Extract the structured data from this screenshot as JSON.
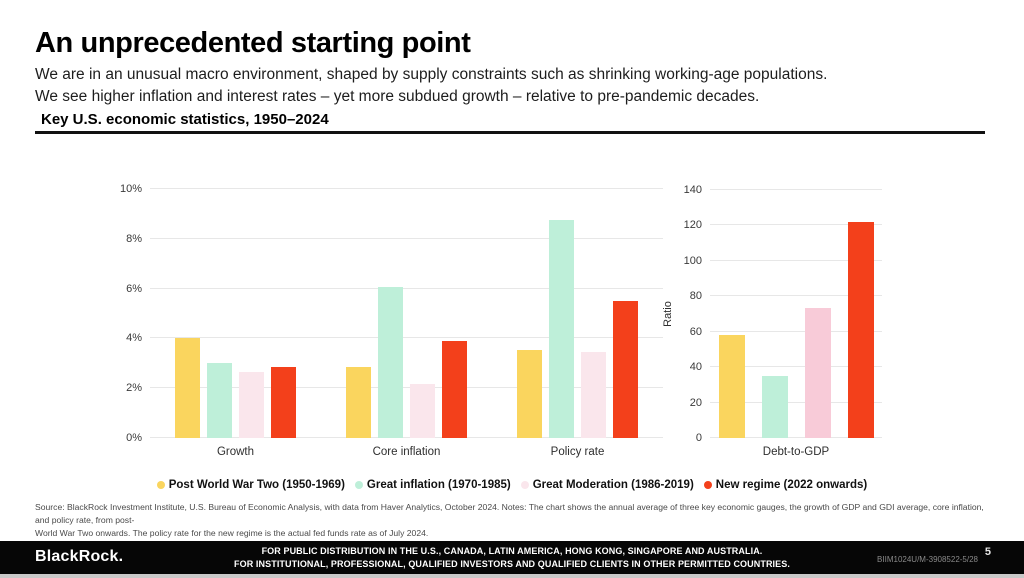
{
  "slide": {
    "title": "An unprecedented starting point",
    "subtitle_line1": "We are in an unusual macro environment, shaped by supply constraints such as shrinking working-age populations.",
    "subtitle_line2": "We see higher inflation and interest rates – yet more subdued growth – relative to pre-pandemic decades.",
    "chart_heading": "Key U.S. economic statistics, 1950–2024"
  },
  "colors": {
    "post_world_war_two": "#FAD55E",
    "great_inflation": "#BEEFD9",
    "great_moderation_light": "#FAE6EC",
    "great_moderation_pink": "#F8CBD8",
    "new_regime": "#F3401B",
    "gridline": "#e7e7e7",
    "footer_background": "#060606"
  },
  "legend": [
    {
      "label": "Post World War Two (1950-1969)",
      "color": "#FAD55E"
    },
    {
      "label": "Great inflation (1970-1985)",
      "color": "#BEEFD9"
    },
    {
      "label": "Great Moderation (1986-2019)",
      "color": "#FAE6EC"
    },
    {
      "label": "New regime (2022 onwards)",
      "color": "#F3401B"
    }
  ],
  "chart_data": [
    {
      "type": "bar",
      "title": "Key U.S. economic statistics, 1950–2024 (left panel)",
      "categories": [
        "Growth",
        "Core inflation",
        "Policy rate"
      ],
      "series": [
        {
          "name": "Post World War Two (1950-1969)",
          "color": "#FAD55E",
          "values": [
            4.0,
            2.85,
            3.55
          ]
        },
        {
          "name": "Great inflation (1970-1985)",
          "color": "#BEEFD9",
          "values": [
            3.0,
            6.05,
            8.75
          ]
        },
        {
          "name": "Great Moderation (1986-2019)",
          "color": "#FAE6EC",
          "values": [
            2.65,
            2.15,
            3.45
          ]
        },
        {
          "name": "New regime (2022 onwards)",
          "color": "#F3401B",
          "values": [
            2.85,
            3.9,
            5.5
          ]
        }
      ],
      "xlabel": "",
      "ylabel": "",
      "ylim": [
        0,
        10
      ],
      "yticks": [
        0,
        2,
        4,
        6,
        8,
        10
      ],
      "ytick_suffix": "%",
      "grid": true,
      "legend_position": "bottom-center"
    },
    {
      "type": "bar",
      "title": "Key U.S. economic statistics, 1950–2024 (right panel)",
      "categories": [
        "Debt-to-GDP"
      ],
      "series": [
        {
          "name": "Post World War Two (1950-1969)",
          "color": "#FAD55E",
          "values": [
            58
          ]
        },
        {
          "name": "Great inflation (1970-1985)",
          "color": "#BEEFD9",
          "values": [
            35
          ]
        },
        {
          "name": "Great Moderation (1986-2019)",
          "color": "#F8CBD8",
          "values": [
            73.5
          ]
        },
        {
          "name": "New regime (2022 onwards)",
          "color": "#F3401B",
          "values": [
            122
          ]
        }
      ],
      "xlabel": "",
      "ylabel": "Ratio",
      "ylim": [
        0,
        140
      ],
      "yticks": [
        0,
        20,
        40,
        60,
        80,
        100,
        120,
        140
      ],
      "ytick_suffix": "",
      "grid": true,
      "legend_position": "bottom-center"
    }
  ],
  "source": {
    "line1": "Source: BlackRock Investment Institute, U.S. Bureau of Economic Analysis, with data from Haver Analytics, October 2024. Notes: The chart shows the annual average of three key economic gauges, the growth of GDP and GDI average, core inflation, and policy rate, from post-",
    "line2": "World War Two onwards. The policy rate for the new regime is the actual fed funds rate as of July 2024."
  },
  "footer": {
    "logo": "BlackRock.",
    "disclaimer_line1": "FOR PUBLIC DISTRIBUTION IN THE U.S., CANADA, LATIN AMERICA, HONG KONG, SINGAPORE AND AUSTRALIA.",
    "disclaimer_line2": "FOR INSTITUTIONAL, PROFESSIONAL, QUALIFIED INVESTORS AND QUALIFIED CLIENTS IN OTHER PERMITTED COUNTRIES.",
    "doc_id": "BIIM1024U/M-3908522-5/28",
    "page_number": "5"
  }
}
